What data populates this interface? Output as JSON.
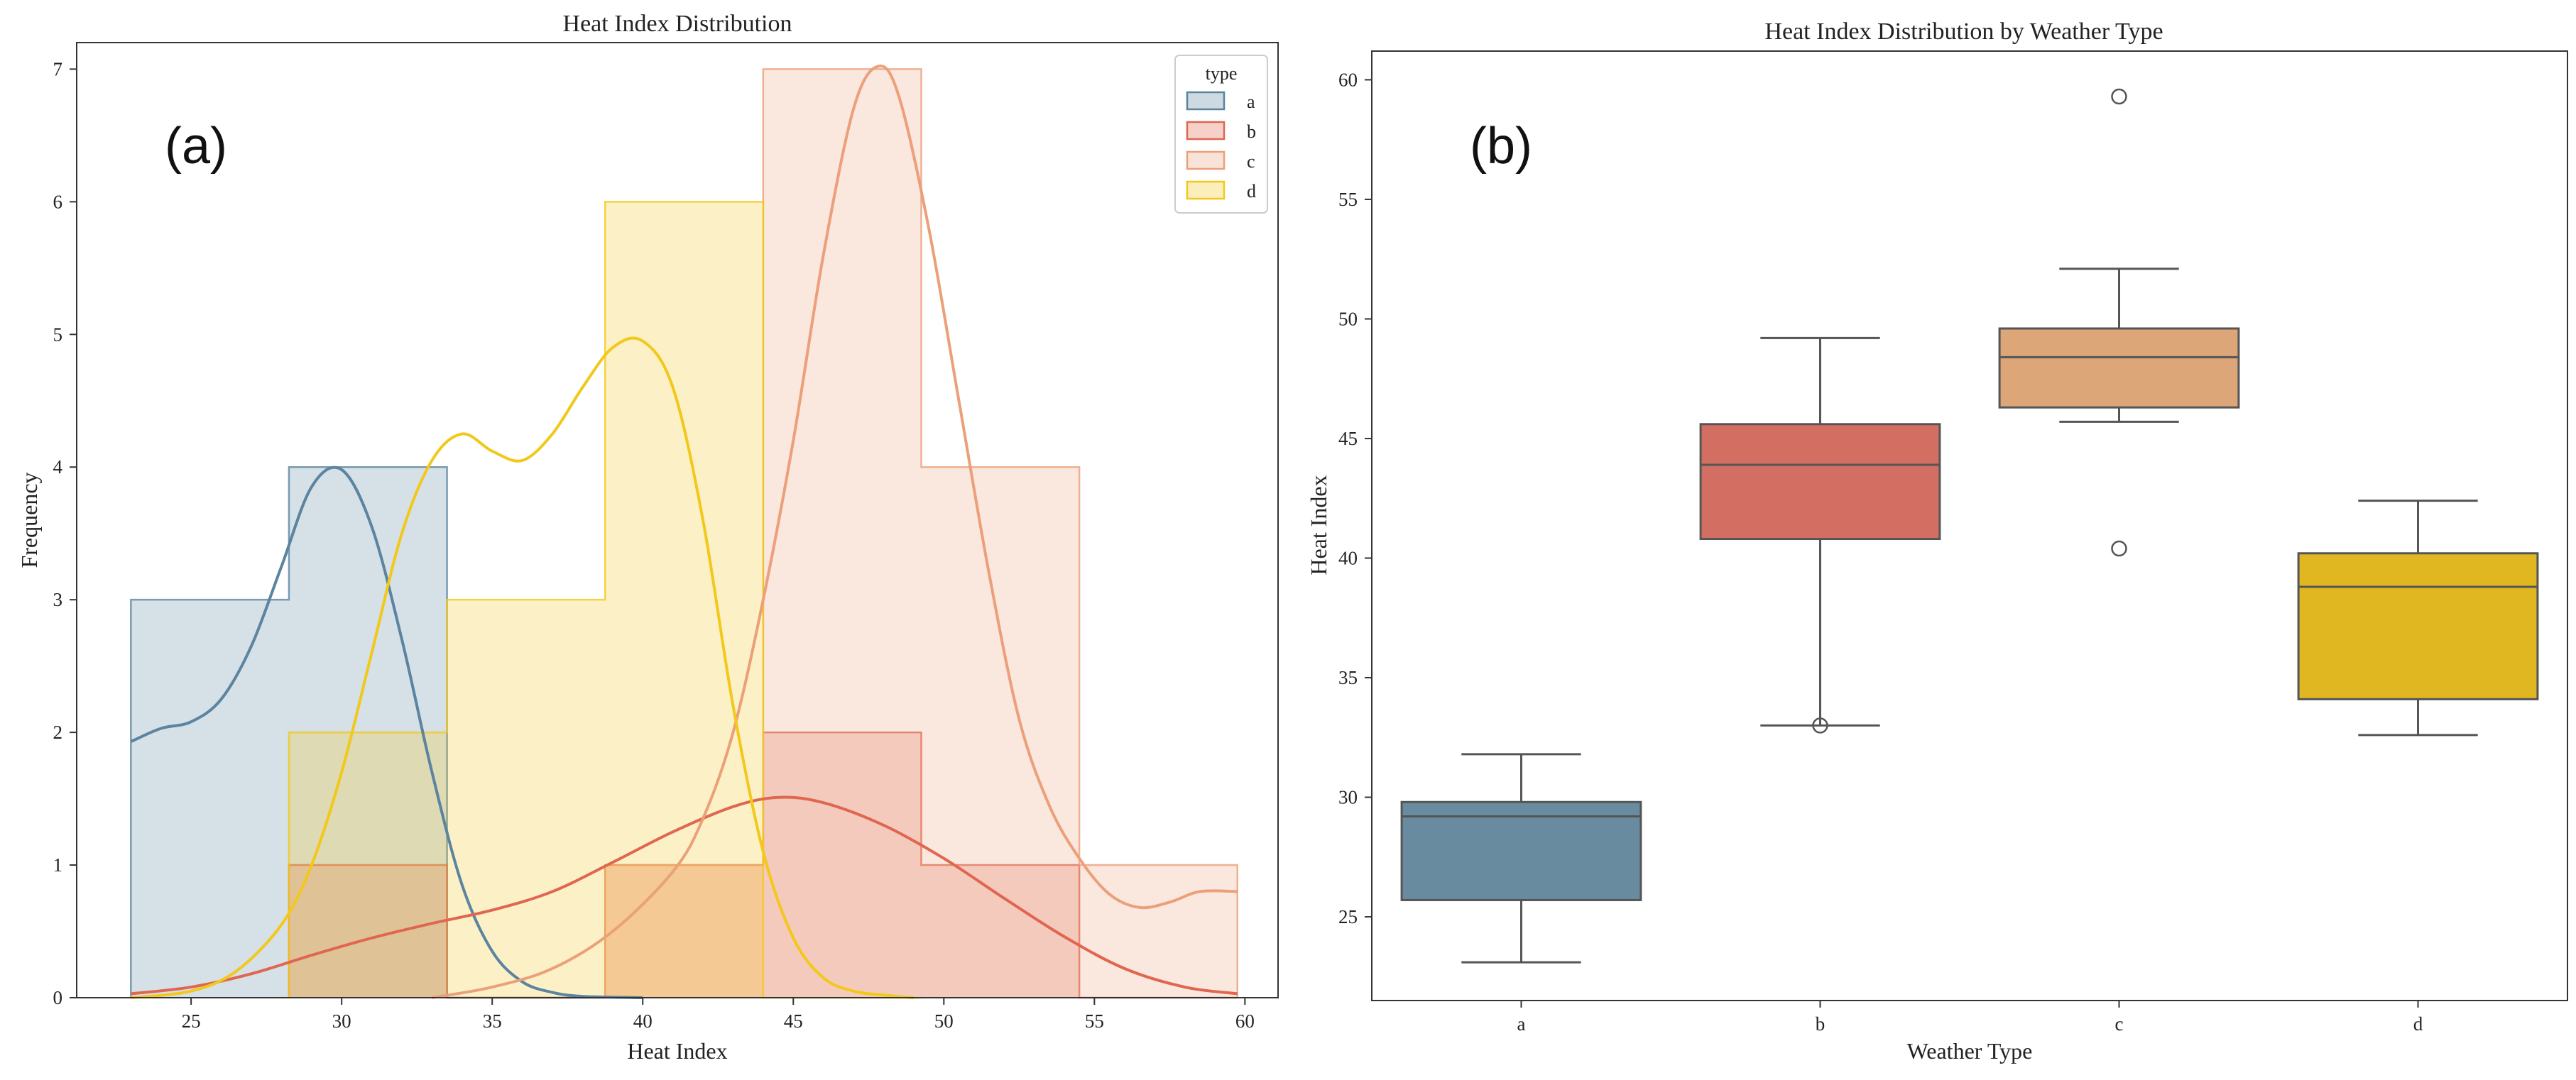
{
  "chart_data": [
    {
      "panel": "(a)",
      "type": "histogram",
      "title": "Heat Index Distribution",
      "xlabel": "Heat Index",
      "ylabel": "Frequency",
      "xlim": [
        21.2,
        61.1
      ],
      "ylim": [
        0,
        7.2
      ],
      "xticks": [
        25,
        30,
        35,
        40,
        45,
        50,
        55,
        60
      ],
      "yticks": [
        0,
        1,
        2,
        3,
        4,
        5,
        6,
        7
      ],
      "bin_edges": [
        23.0,
        28.25,
        33.5,
        38.75,
        44.0,
        49.25,
        54.5,
        59.75
      ],
      "legend": {
        "title": "type",
        "position": "top-right"
      },
      "series": [
        {
          "name": "a",
          "color": "#5b84a0",
          "counts": [
            3,
            4,
            0,
            0,
            0,
            0,
            0
          ],
          "kde": {
            "x": [
              23,
              24,
              25,
              26,
              27,
              28,
              29,
              30,
              31,
              32,
              33,
              34,
              35,
              36,
              37,
              38,
              40
            ],
            "y": [
              1.93,
              2.03,
              2.08,
              2.25,
              2.65,
              3.25,
              3.85,
              3.98,
              3.55,
              2.7,
              1.7,
              0.85,
              0.35,
              0.12,
              0.04,
              0.01,
              0
            ]
          }
        },
        {
          "name": "b",
          "color": "#e06650",
          "counts": [
            0,
            1,
            0,
            1,
            2,
            1,
            0
          ],
          "kde": {
            "x": [
              23,
              25,
              27,
              29,
              31,
              33,
              35,
              37,
              39,
              41,
              43,
              44.5,
              46,
              48,
              50,
              52,
              54,
              56,
              58,
              59.75
            ],
            "y": [
              0.03,
              0.08,
              0.18,
              0.32,
              0.45,
              0.56,
              0.66,
              0.8,
              1.02,
              1.25,
              1.44,
              1.51,
              1.47,
              1.3,
              1.05,
              0.75,
              0.46,
              0.22,
              0.08,
              0.03
            ]
          }
        },
        {
          "name": "c",
          "color": "#eba07a",
          "counts": [
            0,
            0,
            0,
            1,
            7,
            4,
            1
          ],
          "kde": {
            "x": [
              33,
              35,
              37,
              39,
              41,
              42,
              43,
              44,
              45,
              46,
              47,
              47.8,
              48.5,
              49.5,
              50.5,
              51.5,
              52.5,
              53.5,
              54.5,
              55.5,
              56.5,
              57.5,
              58.5,
              59.75
            ],
            "y": [
              0,
              0.08,
              0.22,
              0.5,
              0.95,
              1.35,
              2.0,
              3.0,
              4.2,
              5.6,
              6.7,
              7.02,
              6.8,
              5.8,
              4.5,
              3.2,
              2.1,
              1.45,
              1.05,
              0.78,
              0.68,
              0.72,
              0.8,
              0.8
            ]
          }
        },
        {
          "name": "d",
          "color": "#f2c81a",
          "counts": [
            0,
            2,
            3,
            6,
            0,
            0,
            0
          ],
          "kde": {
            "x": [
              23,
              25,
              26.5,
              28,
              29,
              30,
              31,
              32,
              33,
              34,
              35,
              36,
              37,
              38,
              39,
              40,
              41,
              42,
              43,
              44,
              45,
              46,
              47,
              48,
              49
            ],
            "y": [
              0,
              0.05,
              0.2,
              0.55,
              1.0,
              1.7,
              2.6,
              3.5,
              4.05,
              4.25,
              4.12,
              4.05,
              4.25,
              4.6,
              4.9,
              4.95,
              4.6,
              3.6,
              2.2,
              1.1,
              0.45,
              0.15,
              0.05,
              0.02,
              0
            ]
          }
        }
      ]
    },
    {
      "panel": "(b)",
      "type": "boxplot",
      "title": "Heat Index Distribution by Weather Type",
      "xlabel": "Weather Type",
      "ylabel": "Heat Index",
      "ylim": [
        21.5,
        61.2
      ],
      "yticks": [
        25,
        30,
        35,
        40,
        45,
        50,
        55,
        60
      ],
      "categories": [
        "a",
        "b",
        "c",
        "d"
      ],
      "boxes": [
        {
          "name": "a",
          "color": "#688ba0",
          "whislo": 23.1,
          "q1": 25.7,
          "med": 29.2,
          "q3": 29.8,
          "whishi": 31.8,
          "fliers": []
        },
        {
          "name": "b",
          "color": "#d36f62",
          "whislo": 33.0,
          "q1": 40.8,
          "med": 43.9,
          "q3": 45.6,
          "whishi": 49.2,
          "fliers": [
            33.0
          ]
        },
        {
          "name": "c",
          "color": "#dda678",
          "whislo": 45.7,
          "q1": 46.3,
          "med": 48.4,
          "q3": 49.6,
          "whishi": 52.1,
          "fliers": [
            40.4,
            59.3
          ]
        },
        {
          "name": "d",
          "color": "#e0b720",
          "whislo": 32.6,
          "q1": 34.1,
          "med": 38.8,
          "q3": 40.2,
          "whishi": 42.4,
          "fliers": []
        }
      ]
    }
  ]
}
